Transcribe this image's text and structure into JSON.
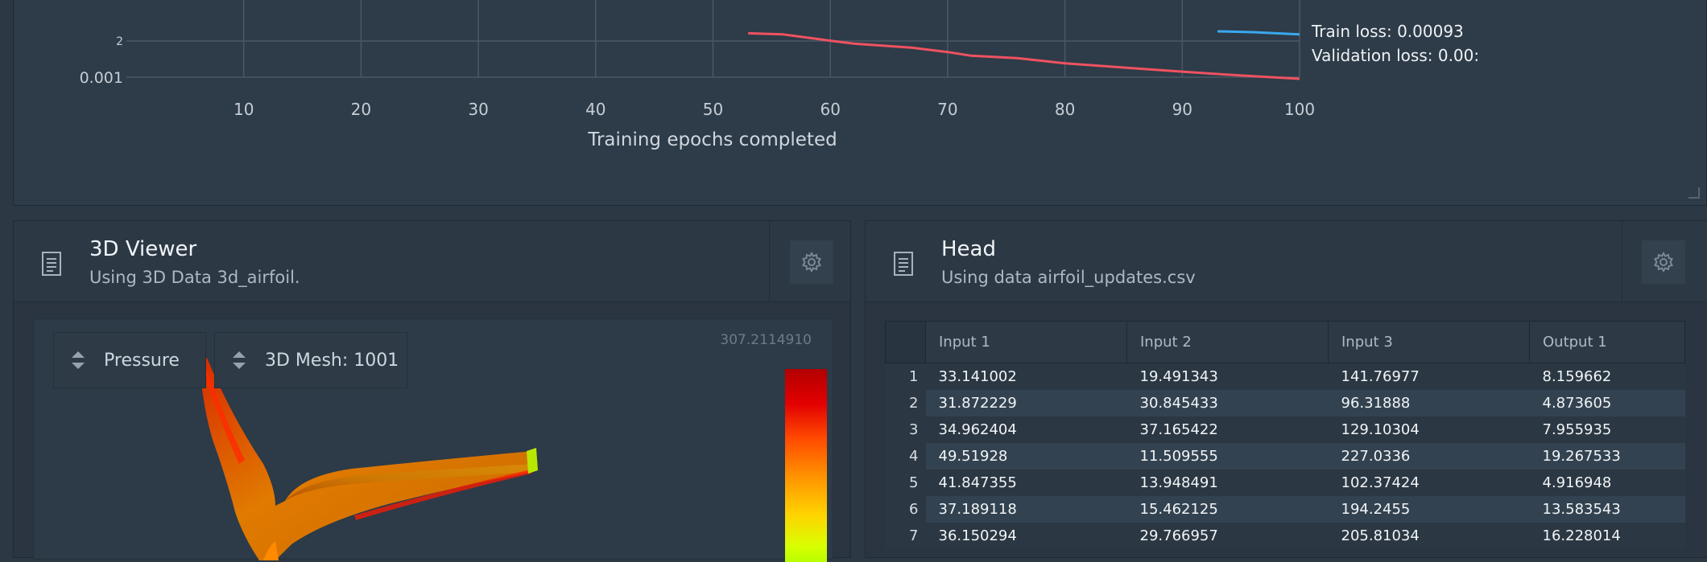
{
  "chart_data": {
    "type": "line",
    "xlabel": "Training epochs completed",
    "xlim": [
      0,
      100
    ],
    "x_ticks": [
      "10",
      "20",
      "30",
      "40",
      "50",
      "60",
      "70",
      "80",
      "90",
      "100"
    ],
    "y_scale": "log",
    "y_tick_labels": [
      "2",
      "0.001"
    ],
    "grid": true,
    "series": [
      {
        "color": "#ef5261",
        "x": [
          53,
          56,
          60,
          62,
          67,
          70,
          72,
          76,
          80,
          85,
          90,
          95,
          100
        ],
        "y": [
          0.0076,
          0.0072,
          0.0054,
          0.0047,
          0.0039,
          0.0032,
          0.0027,
          0.0024,
          0.0019,
          0.00156,
          0.00129,
          0.00108,
          0.00093
        ]
      },
      {
        "color": "#3aa8ee",
        "x": [
          93,
          96,
          100
        ],
        "y": [
          0.0083,
          0.008,
          0.0072
        ]
      }
    ],
    "legend_lines": [
      "Train loss: 0.00093",
      "Validation loss: 0.00:"
    ]
  },
  "viewer": {
    "title": "3D Viewer",
    "subtitle": "Using 3D Data 3d_airfoil.",
    "field_selector": "Pressure",
    "mesh_selector": "3D Mesh: 1001",
    "scale_max": "307.2114910",
    "colormap": [
      "#b20000",
      "#ff4a00",
      "#ff9000",
      "#ffd200",
      "#b8ff00"
    ]
  },
  "head": {
    "title": "Head",
    "subtitle": "Using data airfoil_updates.csv",
    "columns": [
      "Input 1",
      "Input 2",
      "Input 3",
      "Output 1"
    ],
    "rows": [
      {
        "index": "1",
        "values": [
          "33.141002",
          "19.491343",
          "141.76977",
          "8.159662"
        ]
      },
      {
        "index": "2",
        "values": [
          "31.872229",
          "30.845433",
          "96.31888",
          "4.873605"
        ]
      },
      {
        "index": "3",
        "values": [
          "34.962404",
          "37.165422",
          "129.10304",
          "7.955935"
        ]
      },
      {
        "index": "4",
        "values": [
          "49.51928",
          "11.509555",
          "227.0336",
          "19.267533"
        ]
      },
      {
        "index": "5",
        "values": [
          "41.847355",
          "13.948491",
          "102.37424",
          "4.916948"
        ]
      },
      {
        "index": "6",
        "values": [
          "37.189118",
          "15.462125",
          "194.2455",
          "13.583543"
        ]
      },
      {
        "index": "7",
        "values": [
          "36.150294",
          "29.766957",
          "205.81034",
          "16.228014"
        ]
      }
    ]
  }
}
